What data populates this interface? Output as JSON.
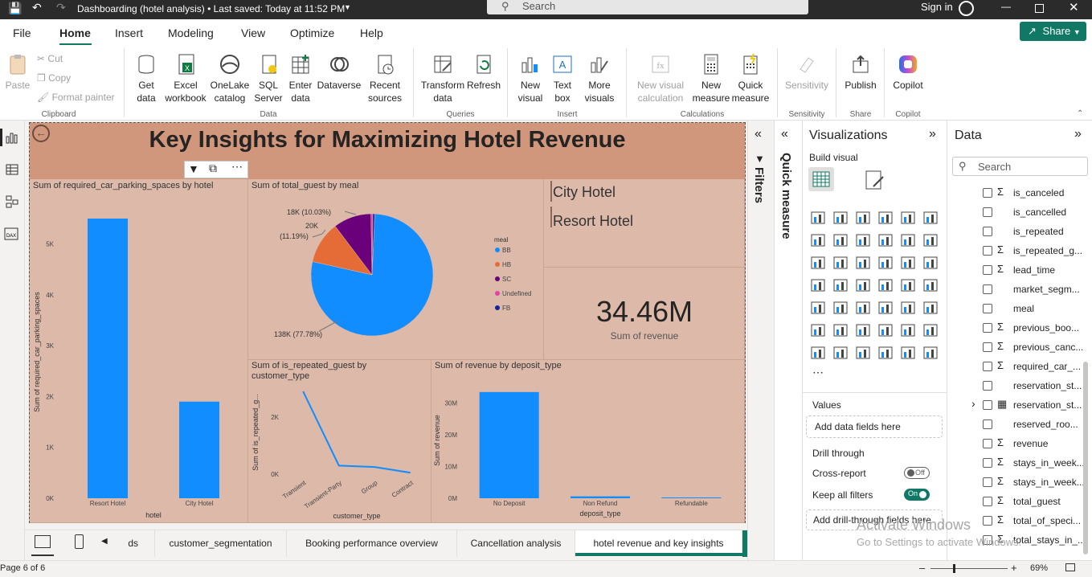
{
  "titlebar": {
    "doc_title": "Dashboarding (hotel analysis) • Last saved: Today at 11:52 PM",
    "search_placeholder": "Search",
    "signin": "Sign in"
  },
  "ribbon_tabs": [
    "File",
    "Home",
    "Insert",
    "Modeling",
    "View",
    "Optimize",
    "Help"
  ],
  "share_label": "Share",
  "ribbon": {
    "clipboard": {
      "paste": "Paste",
      "cut": "Cut",
      "copy": "Copy",
      "format_painter": "Format painter",
      "group": "Clipboard"
    },
    "data": {
      "get_data": [
        "Get",
        "data"
      ],
      "excel": [
        "Excel",
        "workbook"
      ],
      "onelake": [
        "OneLake",
        "catalog"
      ],
      "sql": [
        "SQL",
        "Server"
      ],
      "enter": [
        "Enter",
        "data"
      ],
      "dataverse": "Dataverse",
      "recent": [
        "Recent",
        "sources"
      ],
      "group": "Data"
    },
    "queries": {
      "transform": [
        "Transform",
        "data"
      ],
      "refresh": "Refresh",
      "group": "Queries"
    },
    "insert": {
      "new_visual": [
        "New",
        "visual"
      ],
      "text_box": [
        "Text",
        "box"
      ],
      "more_visuals": [
        "More",
        "visuals"
      ],
      "group": "Insert"
    },
    "calculations": {
      "new_visual_calc": [
        "New visual",
        "calculation"
      ],
      "new_measure": [
        "New",
        "measure"
      ],
      "quick_measure": [
        "Quick",
        "measure"
      ],
      "group": "Calculations"
    },
    "sensitivity": {
      "label": "Sensitivity",
      "group": "Sensitivity"
    },
    "share": {
      "publish": "Publish",
      "group": "Share"
    },
    "copilot": {
      "label": "Copilot",
      "group": "Copilot"
    }
  },
  "report": {
    "title": "Key Insights for Maximizing Hotel Revenue",
    "slicer": [
      "City Hotel",
      "Resort Hotel"
    ],
    "card": {
      "value": "34.46M",
      "label": "Sum of revenue"
    }
  },
  "chart_data": [
    {
      "type": "bar",
      "title": "Sum of required_car_parking_spaces by hotel",
      "categories": [
        "Resort Hotel",
        "City Hotel"
      ],
      "values": [
        5500,
        1900
      ],
      "xlabel": "hotel",
      "ylabel": "Sum of required_car_parking_spaces",
      "yticks": [
        "0K",
        "1K",
        "2K",
        "3K",
        "4K",
        "5K"
      ],
      "ylim": [
        0,
        5800
      ],
      "color": "#118dff"
    },
    {
      "type": "pie",
      "title": "Sum of total_guest by meal",
      "legend_title": "meal",
      "legend": [
        "BB",
        "HB",
        "SC",
        "Undefined",
        "FB"
      ],
      "legend_colors": [
        "#118dff",
        "#e66c37",
        "#6b007b",
        "#e044a7",
        "#12239e"
      ],
      "slices": [
        {
          "name": "BB",
          "value": 77.78,
          "label": "138K (77.78%)",
          "color": "#118dff"
        },
        {
          "name": "HB",
          "value": 11.19,
          "label": "20K (11.19%)",
          "color": "#e66c37"
        },
        {
          "name": "SC",
          "value": 10.03,
          "label": "18K (10.03%)",
          "color": "#6b007b"
        },
        {
          "name": "Undefined",
          "value": 0.5,
          "label": "",
          "color": "#e044a7"
        },
        {
          "name": "FB",
          "value": 0.5,
          "label": "",
          "color": "#12239e"
        }
      ]
    },
    {
      "type": "line",
      "title": "Sum of is_repeated_guest by customer_type",
      "categories": [
        "Transient",
        "Transient-Party",
        "Group",
        "Contract"
      ],
      "values": [
        2900,
        300,
        250,
        50
      ],
      "xlabel": "customer_type",
      "ylabel": "Sum of is_repeated_g...",
      "yticks": [
        "0K",
        "2K"
      ],
      "ylim": [
        0,
        3100
      ],
      "color": "#118dff"
    },
    {
      "type": "bar",
      "title": "Sum of revenue by deposit_type",
      "categories": [
        "No Deposit",
        "Non Refund",
        "Refundable"
      ],
      "values": [
        33.5,
        0.6,
        0.2
      ],
      "xlabel": "deposit_type",
      "ylabel": "Sum of revenue",
      "yticks": [
        "0M",
        "10M",
        "20M",
        "30M"
      ],
      "ylim": [
        0,
        36
      ],
      "color": "#118dff"
    }
  ],
  "page_tabs": [
    "ds",
    "customer_segmentation",
    "Booking performance overview",
    "Cancellation analysis",
    "hotel revenue and key insights"
  ],
  "filters_label": "Filters",
  "quick_measure_label": "Quick measure",
  "visualizations": {
    "title": "Visualizations",
    "build_visual": "Build visual",
    "values_label": "Values",
    "add_data_fields": "Add data fields here",
    "drill_through": "Drill through",
    "cross_report": "Cross-report",
    "cross_report_state": "Off",
    "keep_filters": "Keep all filters",
    "keep_filters_state": "On",
    "add_drill": "Add drill-through fields here"
  },
  "data_pane": {
    "title": "Data",
    "search_placeholder": "Search",
    "fields": [
      {
        "name": "is_canceled",
        "sigma": true
      },
      {
        "name": "is_cancelled",
        "sigma": false
      },
      {
        "name": "is_repeated",
        "sigma": false
      },
      {
        "name": "is_repeated_g...",
        "sigma": true
      },
      {
        "name": "lead_time",
        "sigma": true
      },
      {
        "name": "market_segm...",
        "sigma": false
      },
      {
        "name": "meal",
        "sigma": false
      },
      {
        "name": "previous_boo...",
        "sigma": true
      },
      {
        "name": "previous_canc...",
        "sigma": true
      },
      {
        "name": "required_car_...",
        "sigma": true
      },
      {
        "name": "reservation_st...",
        "sigma": false
      },
      {
        "name": "reservation_st...",
        "sigma": false,
        "calendar": true
      },
      {
        "name": "reserved_roo...",
        "sigma": false
      },
      {
        "name": "revenue",
        "sigma": true
      },
      {
        "name": "stays_in_week...",
        "sigma": true
      },
      {
        "name": "stays_in_week...",
        "sigma": true
      },
      {
        "name": "total_guest",
        "sigma": true
      },
      {
        "name": "total_of_speci...",
        "sigma": true
      },
      {
        "name": "total_stays_in_...",
        "sigma": true
      }
    ]
  },
  "watermark": [
    "Activate Windows",
    "Go to Settings to activate Windows."
  ],
  "status": {
    "page": "Page 6 of 6",
    "zoom": "69%"
  }
}
